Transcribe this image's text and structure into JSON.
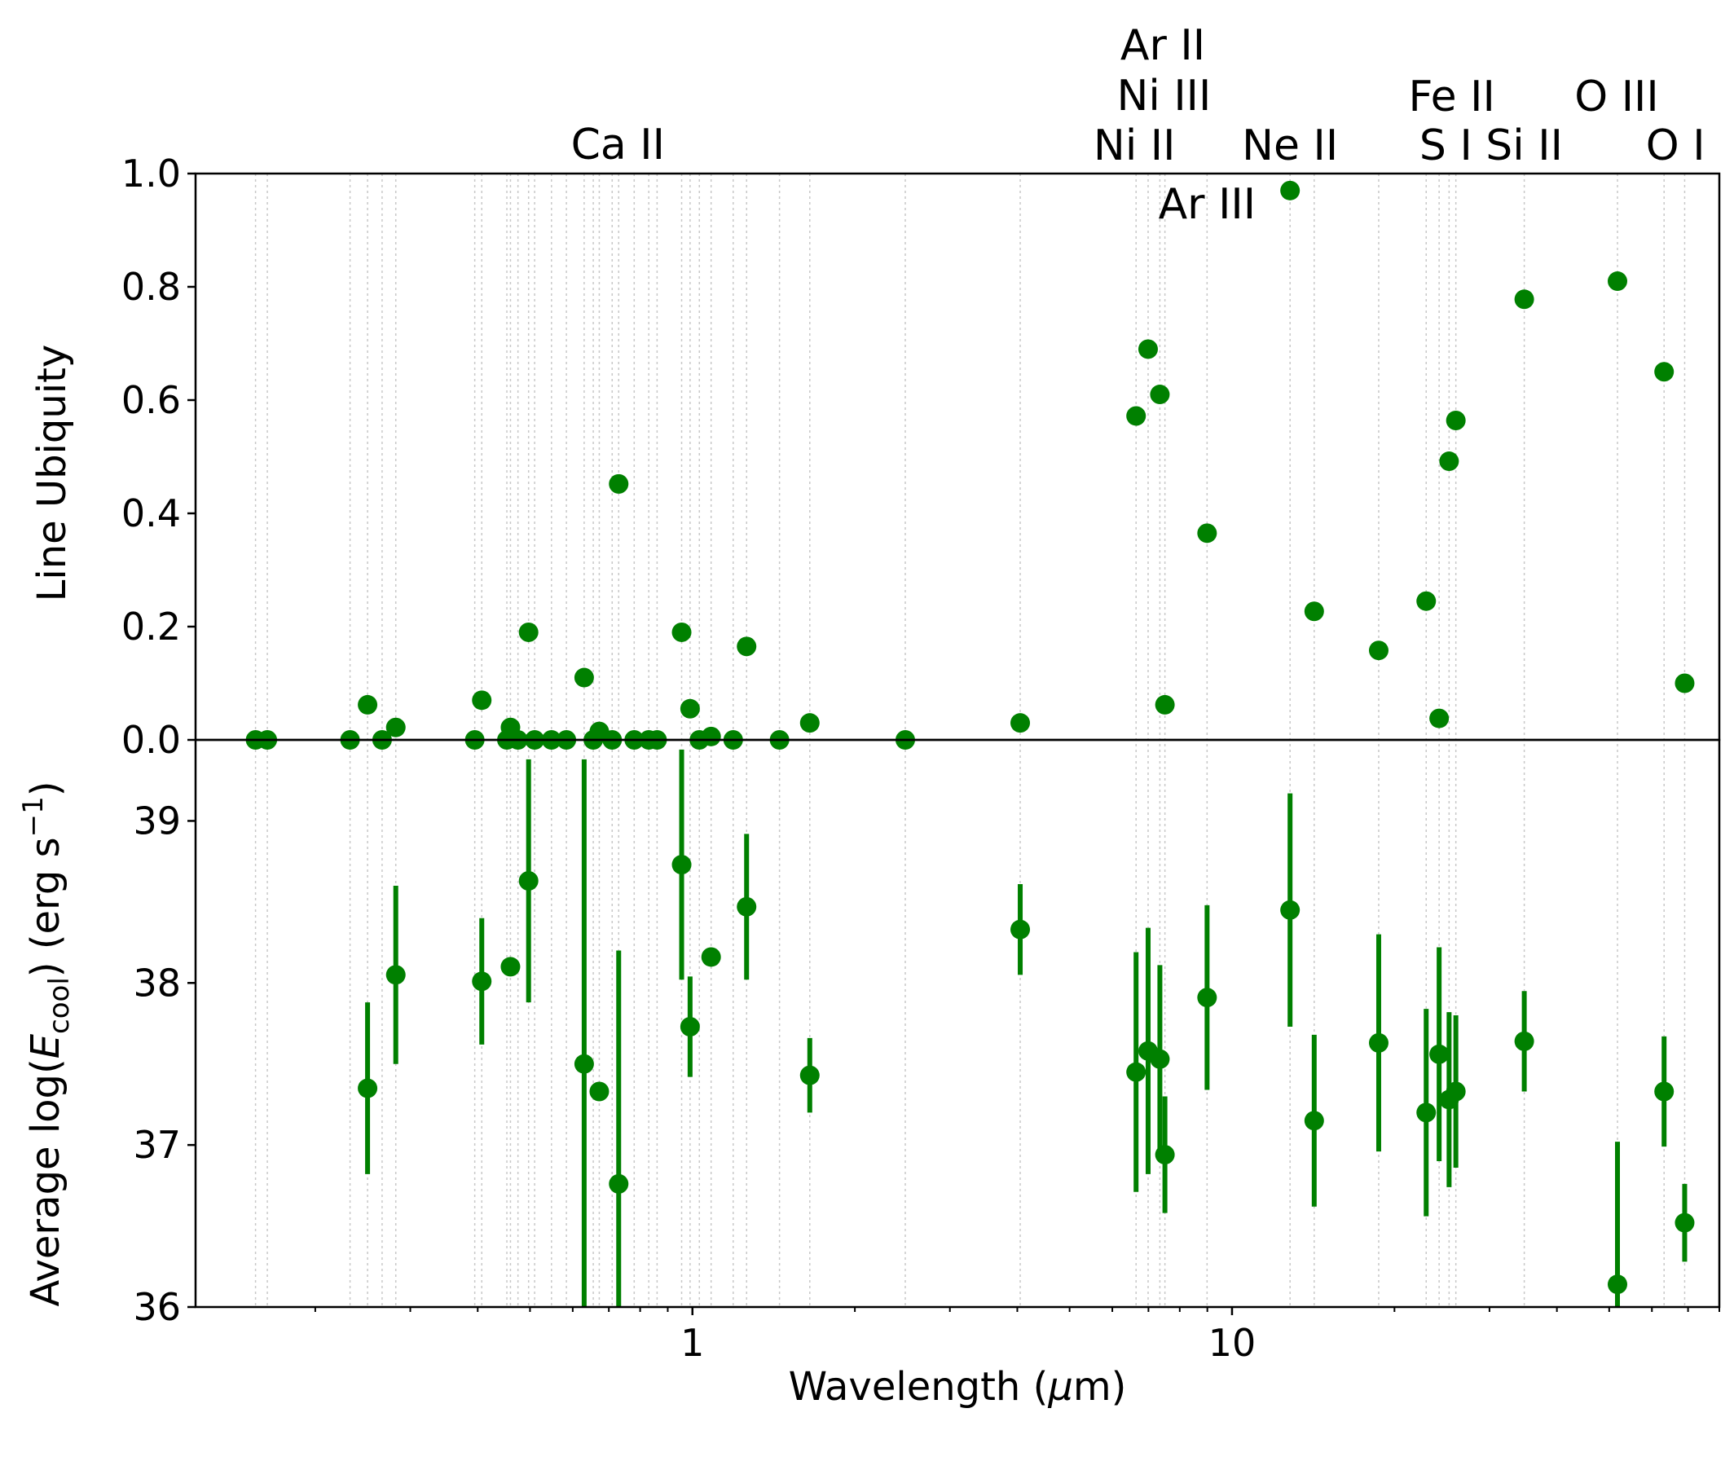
{
  "chart_data": [
    {
      "type": "scatter",
      "panel": "top",
      "ylabel": "Line Ubiquity",
      "ylim": [
        0.0,
        1.0
      ],
      "yticks": [
        "0.0",
        "0.2",
        "0.4",
        "0.6",
        "0.8",
        "1.0"
      ],
      "xscale": "log",
      "xlim": [
        0.12,
        80
      ],
      "marker_color": "#008000",
      "points": [
        {
          "x": 0.155,
          "y": 0.0
        },
        {
          "x": 0.163,
          "y": 0.0
        },
        {
          "x": 0.232,
          "y": 0.0
        },
        {
          "x": 0.25,
          "y": 0.062
        },
        {
          "x": 0.266,
          "y": 0.0
        },
        {
          "x": 0.282,
          "y": 0.022
        },
        {
          "x": 0.395,
          "y": 0.0
        },
        {
          "x": 0.407,
          "y": 0.07
        },
        {
          "x": 0.453,
          "y": 0.0
        },
        {
          "x": 0.46,
          "y": 0.022
        },
        {
          "x": 0.475,
          "y": 0.0
        },
        {
          "x": 0.497,
          "y": 0.19
        },
        {
          "x": 0.51,
          "y": 0.0
        },
        {
          "x": 0.548,
          "y": 0.0
        },
        {
          "x": 0.584,
          "y": 0.0
        },
        {
          "x": 0.63,
          "y": 0.11
        },
        {
          "x": 0.655,
          "y": 0.0
        },
        {
          "x": 0.672,
          "y": 0.015
        },
        {
          "x": 0.71,
          "y": 0.0
        },
        {
          "x": 0.73,
          "y": 0.452
        },
        {
          "x": 0.78,
          "y": 0.0
        },
        {
          "x": 0.83,
          "y": 0.0
        },
        {
          "x": 0.86,
          "y": 0.0
        },
        {
          "x": 0.955,
          "y": 0.19
        },
        {
          "x": 0.99,
          "y": 0.055
        },
        {
          "x": 1.03,
          "y": 0.0
        },
        {
          "x": 1.083,
          "y": 0.006
        },
        {
          "x": 1.19,
          "y": 0.0
        },
        {
          "x": 1.26,
          "y": 0.165
        },
        {
          "x": 1.45,
          "y": 0.0
        },
        {
          "x": 1.65,
          "y": 0.03
        },
        {
          "x": 2.48,
          "y": 0.0
        },
        {
          "x": 4.05,
          "y": 0.03
        },
        {
          "x": 6.64,
          "y": 0.572
        },
        {
          "x": 6.99,
          "y": 0.69
        },
        {
          "x": 7.35,
          "y": 0.61
        },
        {
          "x": 7.51,
          "y": 0.062
        },
        {
          "x": 8.99,
          "y": 0.365
        },
        {
          "x": 12.81,
          "y": 0.97
        },
        {
          "x": 14.2,
          "y": 0.227
        },
        {
          "x": 18.7,
          "y": 0.158
        },
        {
          "x": 22.9,
          "y": 0.245
        },
        {
          "x": 24.2,
          "y": 0.038
        },
        {
          "x": 25.25,
          "y": 0.492
        },
        {
          "x": 25.99,
          "y": 0.564
        },
        {
          "x": 34.8,
          "y": 0.778
        },
        {
          "x": 51.8,
          "y": 0.81
        },
        {
          "x": 63.2,
          "y": 0.65
        },
        {
          "x": 69.0,
          "y": 0.1
        }
      ],
      "line_labels": [
        {
          "text": "Ca II",
          "x": 0.73
        },
        {
          "text": "Ar II",
          "x": 6.99
        },
        {
          "text": "Ni III",
          "x": 7.35
        },
        {
          "text": "Ni II",
          "x": 6.64
        },
        {
          "text": "Ne II",
          "x": 12.81
        },
        {
          "text": "Ar III",
          "x": 8.99
        },
        {
          "text": "Fe II",
          "x": 25.99
        },
        {
          "text": "S I",
          "x": 25.25
        },
        {
          "text": "Si II",
          "x": 34.8
        },
        {
          "text": "O III",
          "x": 51.8
        },
        {
          "text": "O I",
          "x": 63.2
        }
      ],
      "reference_lines_x": [
        0.155,
        0.163,
        0.232,
        0.25,
        0.266,
        0.282,
        0.395,
        0.407,
        0.453,
        0.46,
        0.475,
        0.497,
        0.51,
        0.548,
        0.584,
        0.63,
        0.655,
        0.672,
        0.71,
        0.73,
        0.78,
        0.83,
        0.86,
        0.955,
        0.99,
        1.03,
        1.083,
        1.19,
        1.26,
        1.45,
        1.65,
        2.48,
        4.05,
        6.64,
        6.99,
        7.35,
        7.51,
        8.99,
        12.81,
        14.2,
        18.7,
        22.9,
        24.2,
        25.25,
        25.99,
        34.8,
        51.8,
        63.2,
        69.0
      ]
    },
    {
      "type": "scatter",
      "panel": "bottom",
      "ylabel": "Average log(Ė_cool) (erg s^-1)",
      "ylabel_parts": {
        "pre": "Average log(",
        "sym": "E",
        "sub": "cool",
        "mid": ") (erg s",
        "sup": "−1",
        "post": ")"
      },
      "xlabel": "Wavelength (μm)",
      "xlabel_parts": {
        "pre": "Wavelength (",
        "mu": "μ",
        "post": "m)"
      },
      "ylim": [
        36,
        39.5
      ],
      "yticks": [
        "36",
        "37",
        "38",
        "39"
      ],
      "xscale": "log",
      "xlim": [
        0.12,
        80
      ],
      "xticks": [
        {
          "v": 1,
          "label": "1"
        },
        {
          "v": 10,
          "label": "10"
        }
      ],
      "marker_color": "#008000",
      "points": [
        {
          "x": 0.25,
          "y": 37.35,
          "lo": 36.82,
          "hi": 37.88
        },
        {
          "x": 0.282,
          "y": 38.05,
          "lo": 37.5,
          "hi": 38.6
        },
        {
          "x": 0.407,
          "y": 38.01,
          "lo": 37.62,
          "hi": 38.4
        },
        {
          "x": 0.46,
          "y": 38.1,
          "lo": 38.1,
          "hi": 38.1
        },
        {
          "x": 0.497,
          "y": 38.63,
          "lo": 37.88,
          "hi": 39.38
        },
        {
          "x": 0.63,
          "y": 37.5,
          "lo": 36.0,
          "hi": 39.38
        },
        {
          "x": 0.672,
          "y": 37.33,
          "lo": 37.33,
          "hi": 37.33
        },
        {
          "x": 0.73,
          "y": 36.76,
          "lo": 36.0,
          "hi": 38.2
        },
        {
          "x": 0.955,
          "y": 38.73,
          "lo": 38.02,
          "hi": 39.44
        },
        {
          "x": 0.99,
          "y": 37.73,
          "lo": 37.42,
          "hi": 38.04
        },
        {
          "x": 1.083,
          "y": 38.16,
          "lo": 38.16,
          "hi": 38.16
        },
        {
          "x": 1.26,
          "y": 38.47,
          "lo": 38.02,
          "hi": 38.92
        },
        {
          "x": 1.65,
          "y": 37.43,
          "lo": 37.2,
          "hi": 37.66
        },
        {
          "x": 4.05,
          "y": 38.33,
          "lo": 38.05,
          "hi": 38.61
        },
        {
          "x": 6.64,
          "y": 37.45,
          "lo": 36.71,
          "hi": 38.19
        },
        {
          "x": 6.99,
          "y": 37.58,
          "lo": 36.82,
          "hi": 38.34
        },
        {
          "x": 7.35,
          "y": 37.53,
          "lo": 36.95,
          "hi": 38.11
        },
        {
          "x": 7.51,
          "y": 36.94,
          "lo": 36.58,
          "hi": 37.3
        },
        {
          "x": 8.99,
          "y": 37.91,
          "lo": 37.34,
          "hi": 38.48
        },
        {
          "x": 12.81,
          "y": 38.45,
          "lo": 37.73,
          "hi": 39.17
        },
        {
          "x": 14.2,
          "y": 37.15,
          "lo": 36.62,
          "hi": 37.68
        },
        {
          "x": 18.7,
          "y": 37.63,
          "lo": 36.96,
          "hi": 38.3
        },
        {
          "x": 22.9,
          "y": 37.2,
          "lo": 36.56,
          "hi": 37.84
        },
        {
          "x": 24.2,
          "y": 37.56,
          "lo": 36.9,
          "hi": 38.22
        },
        {
          "x": 25.25,
          "y": 37.28,
          "lo": 36.74,
          "hi": 37.82
        },
        {
          "x": 25.99,
          "y": 37.33,
          "lo": 36.86,
          "hi": 37.8
        },
        {
          "x": 34.8,
          "y": 37.64,
          "lo": 37.33,
          "hi": 37.95
        },
        {
          "x": 51.8,
          "y": 36.14,
          "lo": 36.0,
          "hi": 37.02
        },
        {
          "x": 63.2,
          "y": 37.33,
          "lo": 36.99,
          "hi": 37.67
        },
        {
          "x": 69.0,
          "y": 36.52,
          "lo": 36.28,
          "hi": 36.76
        }
      ]
    }
  ]
}
